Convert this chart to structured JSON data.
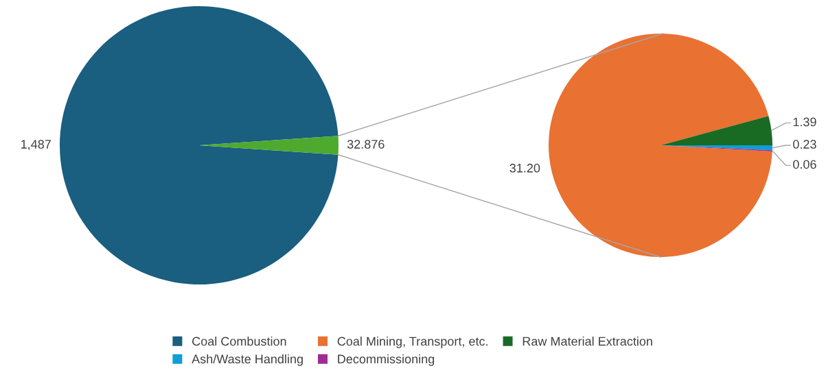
{
  "chart_data": [
    {
      "type": "pie",
      "categories": [
        "Coal Combustion",
        null
      ],
      "values": [
        1487,
        32.876
      ],
      "colors": [
        "#1a5e80",
        "#4eaa2f"
      ],
      "value_labels": [
        "1,487",
        "32.876"
      ],
      "legend": "bottom"
    },
    {
      "type": "pie",
      "categories": [
        "Coal Mining, Transport, etc.",
        "Raw Material Extraction",
        "Ash/Waste Handling",
        "Decommissioning"
      ],
      "values": [
        31.2,
        1.39,
        0.23,
        0.06
      ],
      "colors": [
        "#e97132",
        "#196b24",
        "#0f9ed5",
        "#a02b93"
      ],
      "value_labels": [
        "31.20",
        "1.39",
        "0.23",
        "0.06"
      ],
      "legend": "bottom"
    }
  ]
}
